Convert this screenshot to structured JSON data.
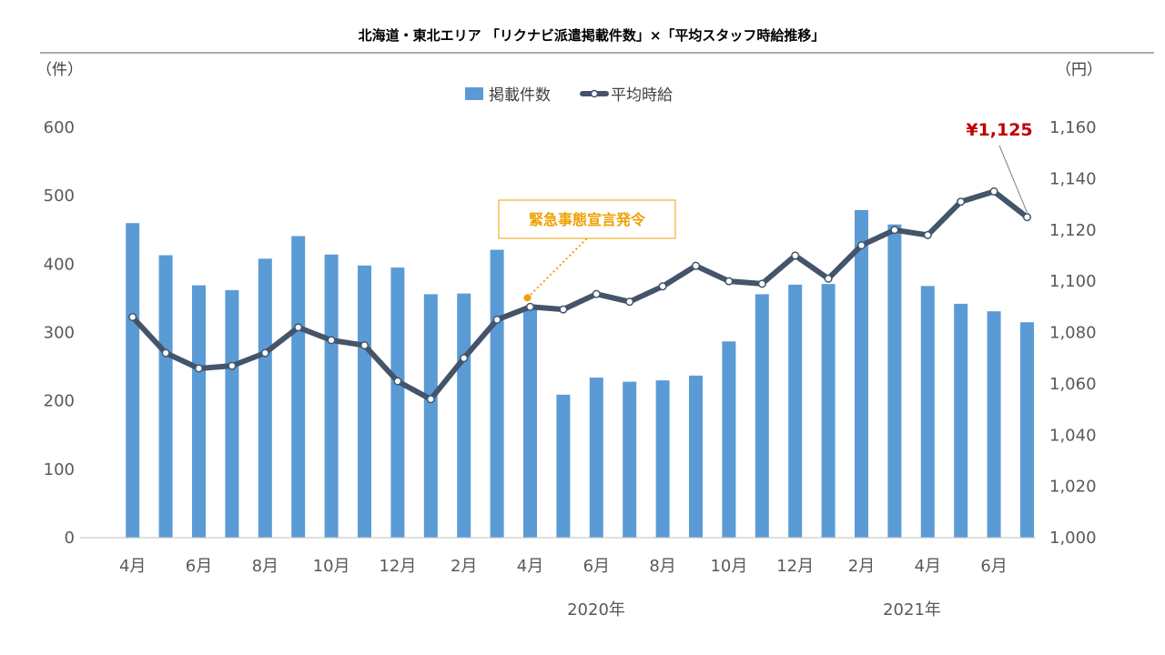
{
  "colors": {
    "bar": "#5b9bd5",
    "line": "#44546a",
    "marker_fill": "#ffffff",
    "callout": "#f0a000",
    "last_value": "#c00000",
    "axis": "#bfbfbf"
  },
  "chart_data": {
    "type": "bar",
    "title": "北海道・東北エリア 「リクナビ派遣掲載件数」×「平均スタッフ時給推移」",
    "left_unit": "（件）",
    "right_unit": "（円）",
    "legend": [
      "掲載件数",
      "平均時給"
    ],
    "legend_placement": "top-center",
    "grid": false,
    "ylim_left": [
      0,
      600
    ],
    "yticks_left": [
      "0",
      "100",
      "200",
      "300",
      "400",
      "500",
      "600"
    ],
    "ylim_right": [
      1000,
      1160
    ],
    "yticks_right": [
      "1,000",
      "1,020",
      "1,040",
      "1,060",
      "1,080",
      "1,100",
      "1,120",
      "1,140",
      "1,160"
    ],
    "x_tick_labels": [
      "4月",
      "",
      "6月",
      "",
      "8月",
      "",
      "10月",
      "",
      "12月",
      "",
      "2月",
      "",
      "4月",
      "",
      "6月",
      "",
      "8月",
      "",
      "10月",
      "",
      "12月",
      "",
      "2月",
      "",
      "4月",
      "",
      "6月",
      ""
    ],
    "year_labels": [
      "2020年",
      "2021年"
    ],
    "series": [
      {
        "name": "掲載件数",
        "kind": "bar",
        "axis": "left",
        "values": [
          460,
          413,
          369,
          362,
          408,
          441,
          414,
          398,
          395,
          356,
          357,
          421,
          338,
          209,
          234,
          228,
          230,
          237,
          287,
          356,
          370,
          371,
          479,
          458,
          368,
          342,
          331,
          315
        ]
      },
      {
        "name": "平均時給",
        "kind": "line",
        "axis": "right",
        "values": [
          1086,
          1072,
          1066,
          1067,
          1072,
          1082,
          1077,
          1075,
          1061,
          1054,
          1070,
          1085,
          1090,
          1089,
          1095,
          1092,
          1098,
          1106,
          1100,
          1099,
          1110,
          1101,
          1114,
          1120,
          1118,
          1131,
          1135,
          1125
        ]
      }
    ],
    "annotations": [
      {
        "text": "緊急事態宣言発令",
        "target_index": 12
      },
      {
        "text": "¥1,125",
        "target_index": 27
      }
    ]
  }
}
